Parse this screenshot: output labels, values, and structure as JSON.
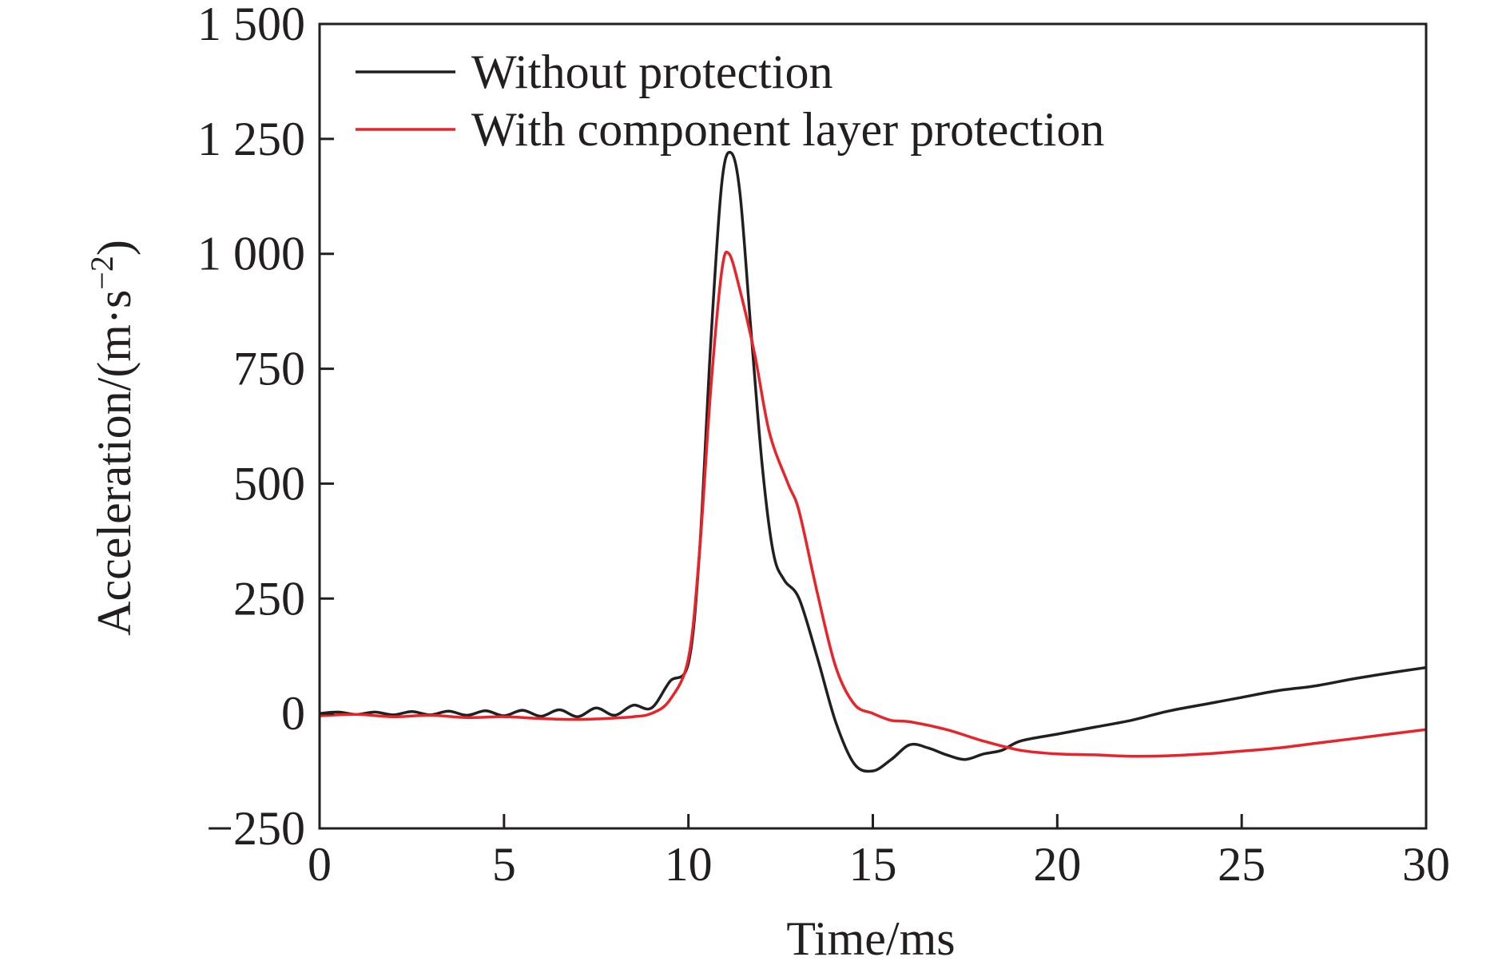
{
  "chart_data": {
    "type": "line",
    "title": "",
    "xlabel": "Time/ms",
    "ylabel_main": "Acceleration/(m·s",
    "ylabel_sup": "−2",
    "ylabel_close": ")",
    "xlim": [
      0,
      30
    ],
    "ylim": [
      -250,
      1500
    ],
    "xticks": [
      0,
      5,
      10,
      15,
      20,
      25,
      30
    ],
    "xtick_labels": [
      "0",
      "5",
      "10",
      "15",
      "20",
      "25",
      "30"
    ],
    "yticks": [
      -250,
      0,
      250,
      500,
      750,
      1000,
      1250,
      1500
    ],
    "ytick_labels": [
      "−250",
      "0",
      "250",
      "500",
      "750",
      "1 000",
      "1 250",
      "1 500"
    ],
    "grid": false,
    "legend_position": "top-left",
    "series": [
      {
        "name": "Without protection",
        "color": "#231f20",
        "points": [
          [
            0,
            0
          ],
          [
            0.5,
            3
          ],
          [
            1,
            -2
          ],
          [
            1.5,
            3
          ],
          [
            2,
            -3
          ],
          [
            2.5,
            4
          ],
          [
            3,
            -3
          ],
          [
            3.5,
            5
          ],
          [
            4,
            -4
          ],
          [
            4.5,
            6
          ],
          [
            5,
            -5
          ],
          [
            5.5,
            7
          ],
          [
            6,
            -6
          ],
          [
            6.5,
            8
          ],
          [
            7,
            -7
          ],
          [
            7.5,
            12
          ],
          [
            8,
            -4
          ],
          [
            8.5,
            18
          ],
          [
            9,
            12
          ],
          [
            9.5,
            70
          ],
          [
            10,
            110
          ],
          [
            10.3,
            350
          ],
          [
            10.6,
            800
          ],
          [
            10.9,
            1150
          ],
          [
            11.15,
            1220
          ],
          [
            11.4,
            1130
          ],
          [
            11.7,
            830
          ],
          [
            12,
            540
          ],
          [
            12.3,
            350
          ],
          [
            12.6,
            290
          ],
          [
            13,
            250
          ],
          [
            13.5,
            120
          ],
          [
            14,
            -20
          ],
          [
            14.5,
            -110
          ],
          [
            15,
            -125
          ],
          [
            15.5,
            -100
          ],
          [
            16,
            -68
          ],
          [
            16.5,
            -75
          ],
          [
            17,
            -90
          ],
          [
            17.5,
            -100
          ],
          [
            18,
            -88
          ],
          [
            18.5,
            -80
          ],
          [
            19,
            -60
          ],
          [
            20,
            -45
          ],
          [
            21,
            -30
          ],
          [
            22,
            -15
          ],
          [
            23,
            5
          ],
          [
            24,
            20
          ],
          [
            25,
            35
          ],
          [
            26,
            50
          ],
          [
            27,
            60
          ],
          [
            28,
            75
          ],
          [
            29,
            88
          ],
          [
            30,
            100
          ]
        ]
      },
      {
        "name": "With component layer protection",
        "color": "#e8242a",
        "points": [
          [
            0,
            -5
          ],
          [
            1,
            -2
          ],
          [
            2,
            -7
          ],
          [
            3,
            -4
          ],
          [
            4,
            -9
          ],
          [
            5,
            -7
          ],
          [
            6,
            -11
          ],
          [
            7,
            -13
          ],
          [
            8,
            -10
          ],
          [
            8.5,
            -7
          ],
          [
            9,
            0
          ],
          [
            9.5,
            30
          ],
          [
            10,
            120
          ],
          [
            10.3,
            350
          ],
          [
            10.6,
            700
          ],
          [
            10.9,
            960
          ],
          [
            11.1,
            1000
          ],
          [
            11.4,
            920
          ],
          [
            11.8,
            780
          ],
          [
            12.2,
            610
          ],
          [
            12.7,
            500
          ],
          [
            13,
            440
          ],
          [
            13.5,
            260
          ],
          [
            14,
            100
          ],
          [
            14.5,
            20
          ],
          [
            15,
            0
          ],
          [
            15.5,
            -15
          ],
          [
            16,
            -18
          ],
          [
            17,
            -35
          ],
          [
            18,
            -60
          ],
          [
            19,
            -80
          ],
          [
            20,
            -88
          ],
          [
            21,
            -90
          ],
          [
            22,
            -93
          ],
          [
            23,
            -92
          ],
          [
            24,
            -88
          ],
          [
            25,
            -82
          ],
          [
            26,
            -75
          ],
          [
            27,
            -65
          ],
          [
            28,
            -55
          ],
          [
            29,
            -45
          ],
          [
            30,
            -35
          ]
        ]
      }
    ]
  }
}
